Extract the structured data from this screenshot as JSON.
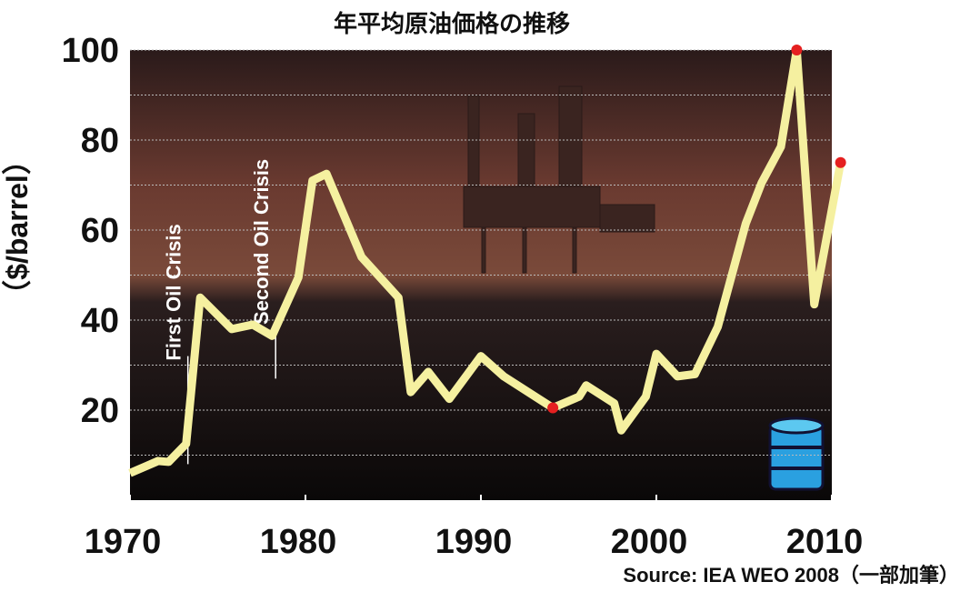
{
  "chart_data": {
    "type": "line",
    "title": "年平均原油価格の推移",
    "y_label": "（$/barrel）",
    "source": "Source: IEA WEO 2008（一部加筆）",
    "x": [
      1970,
      1971.6,
      1972.2,
      1973.2,
      1974,
      1975.8,
      1977,
      1978.1,
      1979.6,
      1980.4,
      1981.2,
      1983.2,
      1985.3,
      1986,
      1987,
      1988.2,
      1990,
      1991.3,
      1994.1,
      1995.6,
      1996,
      1997.6,
      1998,
      1999.4,
      2000,
      2001.2,
      2002.2,
      2003.5,
      2005.1,
      2006,
      2007.1,
      2008,
      2009,
      2010.5
    ],
    "series": [
      {
        "name": "price",
        "color": "#f5f0a0",
        "values": [
          6,
          8.7,
          8.5,
          12.5,
          45,
          38,
          39,
          36.5,
          49.5,
          71,
          72.5,
          54,
          45,
          24,
          28.5,
          22.5,
          32,
          27.5,
          20.5,
          23,
          25.5,
          21.5,
          15.5,
          23,
          32.5,
          27.5,
          28,
          38.5,
          61.5,
          70.5,
          78.5,
          100,
          43.5,
          75
        ],
        "highlight": [
          18,
          31,
          33
        ],
        "highlight_color": "#e52020"
      }
    ],
    "xlim": [
      1970,
      2010
    ],
    "xticks": [
      1970,
      1980,
      1990,
      2000,
      2010
    ],
    "ylim": [
      0,
      100
    ],
    "yticks": [
      20,
      40,
      60,
      80,
      100
    ],
    "yminor": [
      10,
      30,
      50,
      70,
      90
    ],
    "grid": true,
    "annotations": [
      {
        "text": "First Oil Crisis",
        "x": 1973.3,
        "y_from": 8,
        "y_to": 32
      },
      {
        "text": "Second Oil Crisis",
        "x": 1978.3,
        "y_from": 27,
        "y_to": 40
      }
    ]
  }
}
